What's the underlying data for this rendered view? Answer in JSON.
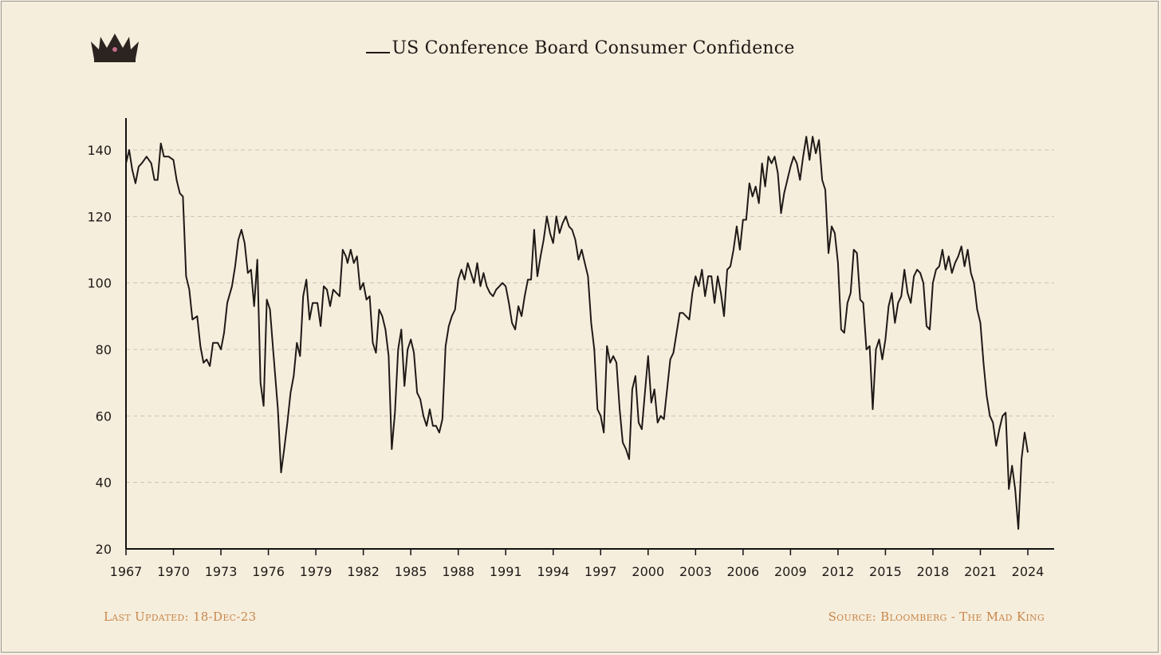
{
  "header": {
    "title": "US Conference Board Consumer Confidence",
    "logo_icon": "crown-icon"
  },
  "footer": {
    "last_updated": "Last Updated:  18-Dec-23",
    "source": "Source: Bloomberg - The Mad King"
  },
  "colors": {
    "background": "#f6eedd",
    "line": "#1f1a17",
    "footer_text": "#c8864a",
    "grid": "#c9c2b2"
  },
  "chart_data": {
    "type": "line",
    "title": "US Conference Board Consumer Confidence",
    "xlabel": "",
    "ylabel": "",
    "xlim": [
      1967,
      2024.5
    ],
    "ylim": [
      20,
      150
    ],
    "x_ticks": [
      "1967",
      "1970",
      "1973",
      "1976",
      "1979",
      "1982",
      "1985",
      "1988",
      "1991",
      "1994",
      "1997",
      "2000",
      "2003",
      "2006",
      "2009",
      "2012",
      "2015",
      "2018",
      "2021",
      "2024"
    ],
    "y_ticks": [
      20,
      40,
      60,
      80,
      100,
      120,
      140
    ],
    "grid": "horizontal-dashed",
    "legend": "top-center",
    "series": [
      {
        "name": "US Conference Board Consumer Confidence",
        "points": [
          [
            1967.0,
            136
          ],
          [
            1967.2,
            140
          ],
          [
            1967.4,
            134
          ],
          [
            1967.6,
            130
          ],
          [
            1967.8,
            135
          ],
          [
            1968.0,
            136
          ],
          [
            1968.3,
            138
          ],
          [
            1968.6,
            136
          ],
          [
            1968.8,
            131
          ],
          [
            1969.0,
            131
          ],
          [
            1969.2,
            142
          ],
          [
            1969.4,
            138
          ],
          [
            1969.7,
            138
          ],
          [
            1970.0,
            137
          ],
          [
            1970.2,
            131
          ],
          [
            1970.4,
            127
          ],
          [
            1970.6,
            126
          ],
          [
            1970.8,
            102
          ],
          [
            1971.0,
            98
          ],
          [
            1971.2,
            89
          ],
          [
            1971.5,
            90
          ],
          [
            1971.7,
            81
          ],
          [
            1971.9,
            76
          ],
          [
            1972.1,
            77
          ],
          [
            1972.3,
            75
          ],
          [
            1972.5,
            82
          ],
          [
            1972.8,
            82
          ],
          [
            1973.0,
            80
          ],
          [
            1973.2,
            85
          ],
          [
            1973.4,
            94
          ],
          [
            1973.7,
            99
          ],
          [
            1973.9,
            105
          ],
          [
            1974.1,
            113
          ],
          [
            1974.3,
            116
          ],
          [
            1974.5,
            112
          ],
          [
            1974.7,
            103
          ],
          [
            1974.9,
            104
          ],
          [
            1975.1,
            93
          ],
          [
            1975.3,
            107
          ],
          [
            1975.5,
            70
          ],
          [
            1975.7,
            63
          ],
          [
            1975.9,
            95
          ],
          [
            1976.1,
            92
          ],
          [
            1976.3,
            80
          ],
          [
            1976.6,
            62
          ],
          [
            1976.8,
            43
          ],
          [
            1977.0,
            50
          ],
          [
            1977.2,
            58
          ],
          [
            1977.4,
            67
          ],
          [
            1977.6,
            72
          ],
          [
            1977.8,
            82
          ],
          [
            1978.0,
            78
          ],
          [
            1978.2,
            96
          ],
          [
            1978.4,
            101
          ],
          [
            1978.6,
            89
          ],
          [
            1978.8,
            94
          ],
          [
            1979.1,
            94
          ],
          [
            1979.3,
            87
          ],
          [
            1979.5,
            99
          ],
          [
            1979.7,
            98
          ],
          [
            1979.9,
            93
          ],
          [
            1980.1,
            98
          ],
          [
            1980.3,
            97
          ],
          [
            1980.5,
            96
          ],
          [
            1980.7,
            110
          ],
          [
            1980.9,
            108
          ],
          [
            1981.0,
            106
          ],
          [
            1981.2,
            110
          ],
          [
            1981.4,
            106
          ],
          [
            1981.6,
            108
          ],
          [
            1981.8,
            98
          ],
          [
            1982.0,
            100
          ],
          [
            1982.2,
            95
          ],
          [
            1982.4,
            96
          ],
          [
            1982.6,
            82
          ],
          [
            1982.8,
            79
          ],
          [
            1983.0,
            92
          ],
          [
            1983.2,
            90
          ],
          [
            1983.4,
            86
          ],
          [
            1983.6,
            78
          ],
          [
            1983.8,
            50
          ],
          [
            1984.0,
            61
          ],
          [
            1984.2,
            80
          ],
          [
            1984.4,
            86
          ],
          [
            1984.6,
            69
          ],
          [
            1984.8,
            80
          ],
          [
            1985.0,
            83
          ],
          [
            1985.2,
            79
          ],
          [
            1985.4,
            67
          ],
          [
            1985.6,
            65
          ],
          [
            1985.8,
            60
          ],
          [
            1986.0,
            57
          ],
          [
            1986.2,
            62
          ],
          [
            1986.4,
            57
          ],
          [
            1986.6,
            57
          ],
          [
            1986.8,
            55
          ],
          [
            1987.0,
            59
          ],
          [
            1987.2,
            81
          ],
          [
            1987.4,
            87
          ],
          [
            1987.6,
            90
          ],
          [
            1987.8,
            92
          ],
          [
            1988.0,
            101
          ],
          [
            1988.2,
            104
          ],
          [
            1988.4,
            101
          ],
          [
            1988.6,
            106
          ],
          [
            1988.8,
            103
          ],
          [
            1989.0,
            100
          ],
          [
            1989.2,
            106
          ],
          [
            1989.4,
            99
          ],
          [
            1989.6,
            103
          ],
          [
            1989.8,
            99
          ],
          [
            1990.0,
            97
          ],
          [
            1990.2,
            96
          ],
          [
            1990.4,
            98
          ],
          [
            1990.6,
            99
          ],
          [
            1990.8,
            100
          ],
          [
            1991.0,
            99
          ],
          [
            1991.2,
            94
          ],
          [
            1991.4,
            88
          ],
          [
            1991.6,
            86
          ],
          [
            1991.8,
            93
          ],
          [
            1992.0,
            90
          ],
          [
            1992.2,
            96
          ],
          [
            1992.4,
            101
          ],
          [
            1992.6,
            101
          ],
          [
            1992.8,
            116
          ],
          [
            1993.0,
            102
          ],
          [
            1993.2,
            108
          ],
          [
            1993.4,
            113
          ],
          [
            1993.6,
            120
          ],
          [
            1993.8,
            115
          ],
          [
            1994.0,
            112
          ],
          [
            1994.2,
            120
          ],
          [
            1994.4,
            115
          ],
          [
            1994.6,
            118
          ],
          [
            1994.8,
            120
          ],
          [
            1995.0,
            117
          ],
          [
            1995.2,
            116
          ],
          [
            1995.4,
            113
          ],
          [
            1995.6,
            107
          ],
          [
            1995.8,
            110
          ],
          [
            1996.0,
            106
          ],
          [
            1996.2,
            102
          ],
          [
            1996.4,
            88
          ],
          [
            1996.6,
            80
          ],
          [
            1996.8,
            62
          ],
          [
            1997.0,
            60
          ],
          [
            1997.2,
            55
          ],
          [
            1997.4,
            81
          ],
          [
            1997.6,
            76
          ],
          [
            1997.8,
            78
          ],
          [
            1998.0,
            76
          ],
          [
            1998.2,
            62
          ],
          [
            1998.4,
            52
          ],
          [
            1998.6,
            50
          ],
          [
            1998.8,
            47
          ],
          [
            1999.0,
            68
          ],
          [
            1999.2,
            72
          ],
          [
            1999.4,
            58
          ],
          [
            1999.6,
            56
          ],
          [
            1999.8,
            67
          ],
          [
            2000.0,
            78
          ],
          [
            2000.2,
            64
          ],
          [
            2000.4,
            68
          ],
          [
            2000.6,
            58
          ],
          [
            2000.8,
            60
          ],
          [
            2001.0,
            59
          ],
          [
            2001.2,
            68
          ],
          [
            2001.4,
            77
          ],
          [
            2001.6,
            79
          ],
          [
            2001.8,
            85
          ],
          [
            2002.0,
            91
          ],
          [
            2002.2,
            91
          ],
          [
            2002.4,
            90
          ],
          [
            2002.6,
            89
          ],
          [
            2002.8,
            97
          ],
          [
            2003.0,
            102
          ],
          [
            2003.2,
            99
          ],
          [
            2003.4,
            104
          ],
          [
            2003.6,
            96
          ],
          [
            2003.8,
            102
          ],
          [
            2004.0,
            102
          ],
          [
            2004.2,
            94
          ],
          [
            2004.4,
            102
          ],
          [
            2004.6,
            97
          ],
          [
            2004.8,
            90
          ],
          [
            2005.0,
            104
          ],
          [
            2005.2,
            105
          ],
          [
            2005.4,
            110
          ],
          [
            2005.6,
            117
          ],
          [
            2005.8,
            110
          ],
          [
            2006.0,
            119
          ],
          [
            2006.2,
            119
          ],
          [
            2006.4,
            130
          ],
          [
            2006.6,
            126
          ],
          [
            2006.8,
            129
          ],
          [
            2007.0,
            124
          ],
          [
            2007.2,
            136
          ],
          [
            2007.4,
            129
          ],
          [
            2007.6,
            138
          ],
          [
            2007.8,
            136
          ],
          [
            2008.0,
            138
          ],
          [
            2008.2,
            133
          ],
          [
            2008.4,
            121
          ],
          [
            2008.6,
            127
          ],
          [
            2008.8,
            131
          ],
          [
            2009.0,
            135
          ],
          [
            2009.2,
            138
          ],
          [
            2009.4,
            136
          ],
          [
            2009.6,
            131
          ],
          [
            2009.8,
            138
          ],
          [
            2010.0,
            144
          ],
          [
            2010.2,
            137
          ],
          [
            2010.4,
            144
          ],
          [
            2010.6,
            139
          ],
          [
            2010.8,
            143
          ],
          [
            2011.0,
            131
          ],
          [
            2011.2,
            128
          ],
          [
            2011.4,
            109
          ],
          [
            2011.6,
            117
          ],
          [
            2011.8,
            115
          ],
          [
            2012.0,
            106
          ],
          [
            2012.2,
            86
          ],
          [
            2012.4,
            85
          ],
          [
            2012.6,
            94
          ],
          [
            2012.8,
            97
          ],
          [
            2013.0,
            110
          ],
          [
            2013.2,
            109
          ],
          [
            2013.4,
            95
          ],
          [
            2013.6,
            94
          ],
          [
            2013.8,
            80
          ],
          [
            2014.0,
            81
          ],
          [
            2014.2,
            62
          ],
          [
            2014.4,
            80
          ],
          [
            2014.6,
            83
          ],
          [
            2014.8,
            77
          ],
          [
            2015.0,
            83
          ],
          [
            2015.2,
            93
          ],
          [
            2015.4,
            97
          ],
          [
            2015.6,
            88
          ],
          [
            2015.8,
            94
          ],
          [
            2016.0,
            96
          ],
          [
            2016.2,
            104
          ],
          [
            2016.4,
            97
          ],
          [
            2016.6,
            94
          ],
          [
            2016.8,
            102
          ],
          [
            2017.0,
            104
          ],
          [
            2017.2,
            103
          ],
          [
            2017.4,
            100
          ],
          [
            2017.6,
            87
          ],
          [
            2017.8,
            86
          ],
          [
            2018.0,
            100
          ],
          [
            2018.2,
            104
          ],
          [
            2018.4,
            105
          ],
          [
            2018.6,
            110
          ],
          [
            2018.8,
            104
          ],
          [
            2019.0,
            108
          ],
          [
            2019.2,
            103
          ],
          [
            2019.4,
            106
          ],
          [
            2019.6,
            108
          ],
          [
            2019.8,
            111
          ],
          [
            2020.0,
            105
          ],
          [
            2020.2,
            110
          ],
          [
            2020.4,
            103
          ],
          [
            2020.6,
            100
          ],
          [
            2020.8,
            92
          ],
          [
            2021.0,
            88
          ],
          [
            2021.2,
            76
          ],
          [
            2021.4,
            66
          ],
          [
            2021.6,
            60
          ],
          [
            2021.8,
            58
          ],
          [
            2022.0,
            51
          ],
          [
            2022.2,
            56
          ],
          [
            2022.4,
            60
          ],
          [
            2022.6,
            61
          ],
          [
            2022.8,
            38
          ],
          [
            2023.0,
            45
          ],
          [
            2023.2,
            38
          ],
          [
            2023.4,
            26
          ],
          [
            2023.6,
            47
          ],
          [
            2023.8,
            55
          ],
          [
            2024.0,
            49
          ]
        ]
      }
    ]
  }
}
